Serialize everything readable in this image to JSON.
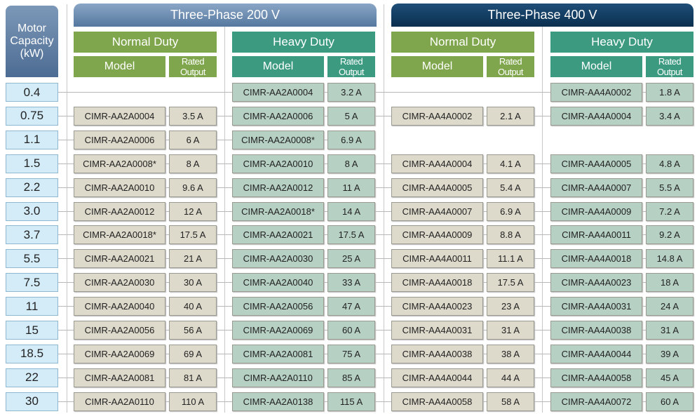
{
  "header": {
    "capacity": "Motor Capacity (kW)",
    "groups": [
      {
        "title": "Three-Phase 200 V",
        "duties": [
          {
            "title": "Normal Duty",
            "model": "Model",
            "output": "Rated Output"
          },
          {
            "title": "Heavy Duty",
            "model": "Model",
            "output": "Rated Output"
          }
        ]
      },
      {
        "title": "Three-Phase 400 V",
        "duties": [
          {
            "title": "Normal Duty",
            "model": "Model",
            "output": "Rated Output"
          },
          {
            "title": "Heavy Duty",
            "model": "Model",
            "output": "Rated Output"
          }
        ]
      }
    ]
  },
  "rows": [
    {
      "capacity": "0.4",
      "cells": [
        null,
        [
          "CIMR-AA2A0004",
          "3.2 A"
        ],
        null,
        [
          "CIMR-AA4A0002",
          "1.8 A"
        ]
      ]
    },
    {
      "capacity": "0.75",
      "cells": [
        [
          "CIMR-AA2A0004",
          "3.5 A"
        ],
        [
          "CIMR-AA2A0006",
          "5 A"
        ],
        [
          "CIMR-AA4A0002",
          "2.1 A"
        ],
        [
          "CIMR-AA4A0004",
          "3.4 A"
        ]
      ]
    },
    {
      "capacity": "1.1",
      "cells": [
        [
          "CIMR-AA2A0006",
          "6 A"
        ],
        [
          "CIMR-AA2A0008*",
          "6.9 A"
        ],
        null,
        null
      ]
    },
    {
      "capacity": "1.5",
      "cells": [
        [
          "CIMR-AA2A0008*",
          "8 A"
        ],
        [
          "CIMR-AA2A0010",
          "8 A"
        ],
        [
          "CIMR-AA4A0004",
          "4.1 A"
        ],
        [
          "CIMR-AA4A0005",
          "4.8 A"
        ]
      ]
    },
    {
      "capacity": "2.2",
      "cells": [
        [
          "CIMR-AA2A0010",
          "9.6 A"
        ],
        [
          "CIMR-AA2A0012",
          "11 A"
        ],
        [
          "CIMR-AA4A0005",
          "5.4 A"
        ],
        [
          "CIMR-AA4A0007",
          "5.5 A"
        ]
      ]
    },
    {
      "capacity": "3.0",
      "cells": [
        [
          "CIMR-AA2A0012",
          "12 A"
        ],
        [
          "CIMR-AA2A0018*",
          "14 A"
        ],
        [
          "CIMR-AA4A0007",
          "6.9 A"
        ],
        [
          "CIMR-AA4A0009",
          "7.2 A"
        ]
      ]
    },
    {
      "capacity": "3.7",
      "cells": [
        [
          "CIMR-AA2A0018*",
          "17.5 A"
        ],
        [
          "CIMR-AA2A0021",
          "17.5 A"
        ],
        [
          "CIMR-AA4A0009",
          "8.8 A"
        ],
        [
          "CIMR-AA4A0011",
          "9.2 A"
        ]
      ]
    },
    {
      "capacity": "5.5",
      "cells": [
        [
          "CIMR-AA2A0021",
          "21 A"
        ],
        [
          "CIMR-AA2A0030",
          "25 A"
        ],
        [
          "CIMR-AA4A0011",
          "11.1 A"
        ],
        [
          "CIMR-AA4A0018",
          "14.8 A"
        ]
      ]
    },
    {
      "capacity": "7.5",
      "cells": [
        [
          "CIMR-AA2A0030",
          "30 A"
        ],
        [
          "CIMR-AA2A0040",
          "33 A"
        ],
        [
          "CIMR-AA4A0018",
          "17.5 A"
        ],
        [
          "CIMR-AA4A0023",
          "18 A"
        ]
      ]
    },
    {
      "capacity": "11",
      "cells": [
        [
          "CIMR-AA2A0040",
          "40 A"
        ],
        [
          "CIMR-AA2A0056",
          "47 A"
        ],
        [
          "CIMR-AA4A0023",
          "23 A"
        ],
        [
          "CIMR-AA4A0031",
          "24 A"
        ]
      ]
    },
    {
      "capacity": "15",
      "cells": [
        [
          "CIMR-AA2A0056",
          "56 A"
        ],
        [
          "CIMR-AA2A0069",
          "60 A"
        ],
        [
          "CIMR-AA4A0031",
          "31 A"
        ],
        [
          "CIMR-AA4A0038",
          "31 A"
        ]
      ]
    },
    {
      "capacity": "18.5",
      "cells": [
        [
          "CIMR-AA2A0069",
          "69 A"
        ],
        [
          "CIMR-AA2A0081",
          "75 A"
        ],
        [
          "CIMR-AA4A0038",
          "38 A"
        ],
        [
          "CIMR-AA4A0044",
          "39 A"
        ]
      ]
    },
    {
      "capacity": "22",
      "cells": [
        [
          "CIMR-AA2A0081",
          "81 A"
        ],
        [
          "CIMR-AA2A0110",
          "85 A"
        ],
        [
          "CIMR-AA4A0044",
          "44 A"
        ],
        [
          "CIMR-AA4A0058",
          "45 A"
        ]
      ]
    },
    {
      "capacity": "30",
      "cells": [
        [
          "CIMR-AA2A0110",
          "110 A"
        ],
        [
          "CIMR-AA2A0138",
          "115 A"
        ],
        [
          "CIMR-AA4A0058",
          "58 A"
        ],
        [
          "CIMR-AA4A0072",
          "60 A"
        ]
      ]
    }
  ]
}
